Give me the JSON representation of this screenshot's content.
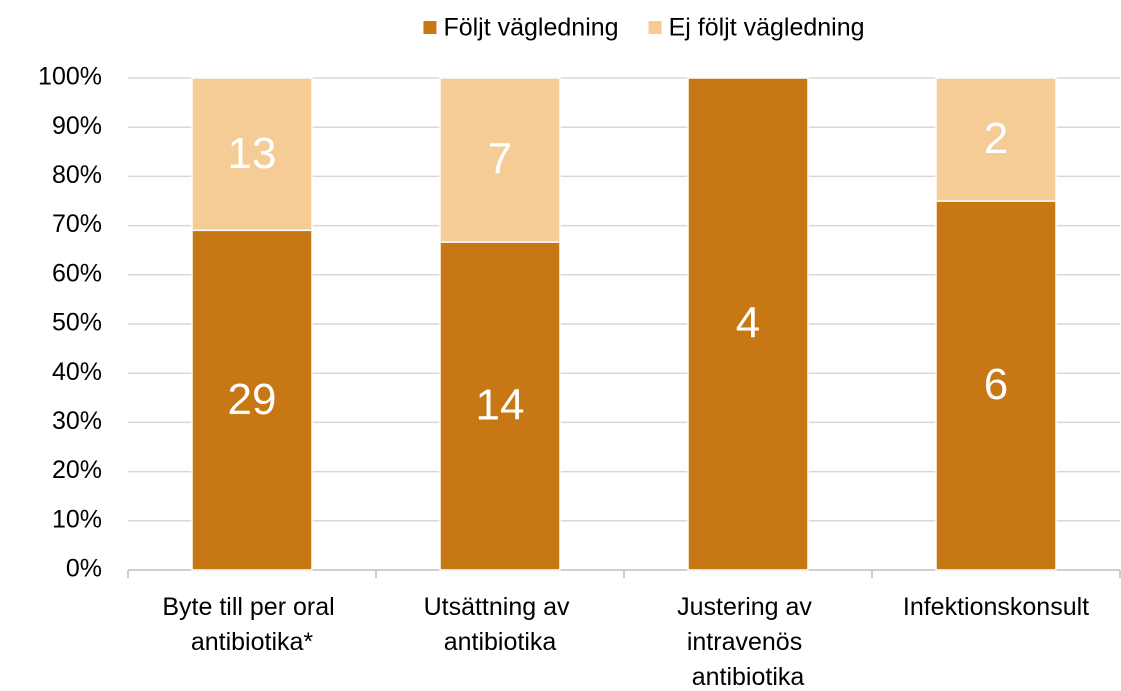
{
  "chart_data": {
    "type": "bar",
    "stacking": "percent",
    "categories": [
      "Byte till per oral antibiotika*",
      "Utsättning av antibiotika",
      "Justering av intravenös antibiotika",
      "Infektionskonsult"
    ],
    "series": [
      {
        "name": "Följt vägledning",
        "color": "#c77814",
        "values": [
          29,
          14,
          4,
          6
        ]
      },
      {
        "name": "Ej följt vägledning",
        "color": "#f5cb96",
        "values": [
          13,
          7,
          null,
          2
        ]
      }
    ],
    "ylim": [
      0,
      100
    ],
    "yticks": [
      {
        "value": 0,
        "label": "0%"
      },
      {
        "value": 10,
        "label": "10%"
      },
      {
        "value": 20,
        "label": "20%"
      },
      {
        "value": 30,
        "label": "30%"
      },
      {
        "value": 40,
        "label": "40%"
      },
      {
        "value": 50,
        "label": "50%"
      },
      {
        "value": 60,
        "label": "60%"
      },
      {
        "value": 70,
        "label": "70%"
      },
      {
        "value": 80,
        "label": "80%"
      },
      {
        "value": 90,
        "label": "90%"
      },
      {
        "value": 100,
        "label": "100%"
      }
    ],
    "grid": true,
    "legend": "top"
  }
}
